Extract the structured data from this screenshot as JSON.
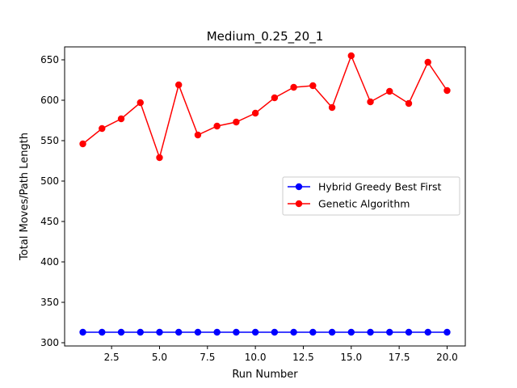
{
  "chart_data": {
    "type": "line",
    "title": "Medium_0.25_20_1",
    "xlabel": "Run Number",
    "ylabel": "Total Moves/Path Length",
    "xlim": [
      0.05,
      20.95
    ],
    "ylim": [
      296,
      666
    ],
    "xticks": [
      2.5,
      5.0,
      7.5,
      10.0,
      12.5,
      15.0,
      17.5,
      20.0
    ],
    "xtick_labels": [
      "2.5",
      "5.0",
      "7.5",
      "10.0",
      "12.5",
      "15.0",
      "17.5",
      "20.0"
    ],
    "yticks": [
      300,
      350,
      400,
      450,
      500,
      550,
      600,
      650
    ],
    "ytick_labels": [
      "300",
      "350",
      "400",
      "450",
      "500",
      "550",
      "600",
      "650"
    ],
    "grid": false,
    "legend_position": "center-right",
    "x": [
      1,
      2,
      3,
      4,
      5,
      6,
      7,
      8,
      9,
      10,
      11,
      12,
      13,
      14,
      15,
      16,
      17,
      18,
      19,
      20
    ],
    "series": [
      {
        "name": "Hybrid Greedy Best First",
        "color": "#0000ff",
        "marker": "circle",
        "values": [
          313,
          313,
          313,
          313,
          313,
          313,
          313,
          313,
          313,
          313,
          313,
          313,
          313,
          313,
          313,
          313,
          313,
          313,
          313,
          313
        ]
      },
      {
        "name": "Genetic Algorithm",
        "color": "#ff0000",
        "marker": "circle",
        "values": [
          546,
          565,
          577,
          597,
          529,
          619,
          557,
          568,
          573,
          584,
          603,
          616,
          618,
          591,
          655,
          598,
          611,
          596,
          647,
          612
        ]
      }
    ]
  }
}
